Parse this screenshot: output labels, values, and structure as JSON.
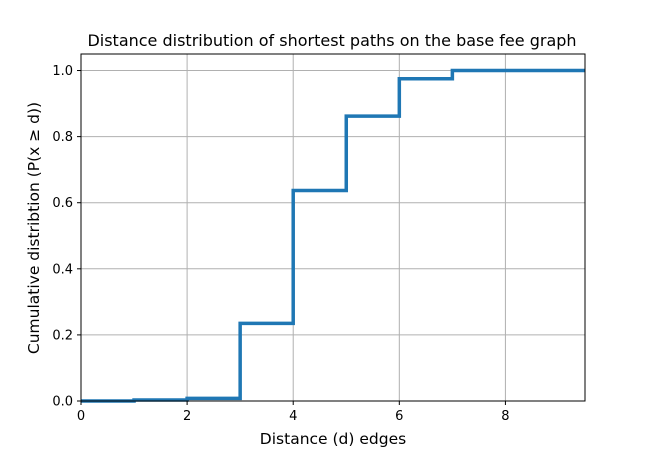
{
  "chart_data": {
    "type": "line",
    "title": "Distance distribution of shortest paths on the base fee graph",
    "xlabel": "Distance (d) edges",
    "ylabel": "Cumulative distribtion (P(x ≥ d))",
    "xlim": [
      0,
      9.5
    ],
    "ylim": [
      0,
      1.05
    ],
    "xticks": [
      0,
      2,
      4,
      6,
      8
    ],
    "yticks": [
      0.0,
      0.2,
      0.4,
      0.6,
      0.8,
      1.0
    ],
    "grid": true,
    "step": "post",
    "series": [
      {
        "x": [
          0,
          1,
          2,
          3,
          4,
          5,
          6,
          7,
          9.5
        ],
        "y": [
          0.0,
          0.003,
          0.008,
          0.235,
          0.637,
          0.862,
          0.975,
          1.0,
          1.0
        ],
        "color": "#1f77b4"
      }
    ]
  }
}
